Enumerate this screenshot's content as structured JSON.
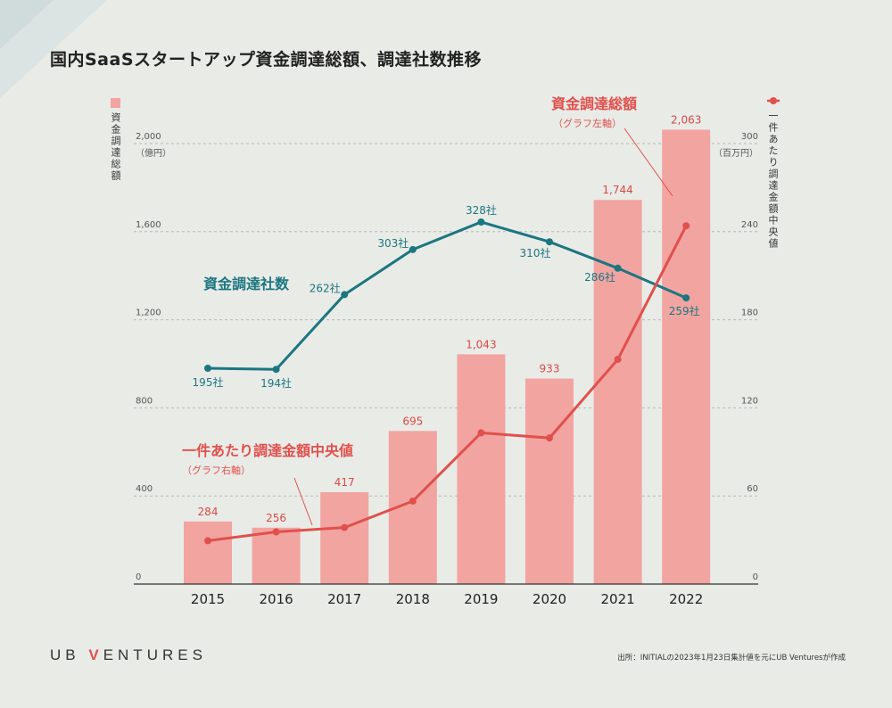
{
  "title": "国内SaaSスタートアップ資金調達総額、調達社数推移",
  "logo": {
    "prefix": "UB ",
    "accent": "V",
    "suffix": "ENTURES"
  },
  "source": "出所：INITIALの2023年1月23日集計値を元にUB Venturesが作成",
  "legend": {
    "left_label": "資金調達総額",
    "right_label": "一件あたり調達金額中央値"
  },
  "colors": {
    "bar": "#f2a4a1",
    "bar_label": "#d94a45",
    "red_line": "#e0504c",
    "teal_line": "#1b7680",
    "axis_text": "#555555",
    "grid": "#b9bab6",
    "corner": "#d6e1e0"
  },
  "chart_data": {
    "type": "bar+line",
    "categories": [
      "2015",
      "2016",
      "2017",
      "2018",
      "2019",
      "2020",
      "2021",
      "2022"
    ],
    "left_axis": {
      "ticks": [
        "0",
        "400",
        "800",
        "1,200",
        "1,600",
        "2,000"
      ],
      "tick_values": [
        0,
        400,
        800,
        1200,
        1600,
        2000
      ],
      "unit": "（億円）",
      "ylim": [
        0,
        2000
      ]
    },
    "right_axis": {
      "ticks": [
        "0",
        "60",
        "120",
        "180",
        "240",
        "300"
      ],
      "tick_values": [
        0,
        60,
        120,
        180,
        240,
        300
      ],
      "unit": "（百万円）",
      "ylim": [
        0,
        300
      ]
    },
    "bars": {
      "name": "資金調達総額",
      "sub": "（グラフ左軸）",
      "values": [
        284,
        256,
        417,
        695,
        1043,
        933,
        1744,
        2063
      ],
      "labels": [
        "284",
        "256",
        "417",
        "695",
        "1,043",
        "933",
        "1,744",
        "2,063"
      ]
    },
    "median_line": {
      "name": "一件あたり調達金額中央値",
      "sub": "（グラフ右軸）",
      "values": [
        29.5,
        35.5,
        38.5,
        56.5,
        103,
        99.5,
        153,
        244
      ]
    },
    "count_line": {
      "name": "資金調達社数",
      "values": [
        195,
        194,
        262,
        303,
        328,
        310,
        286,
        259
      ],
      "labels": [
        "195社",
        "194社",
        "262社",
        "303社",
        "328社",
        "310社",
        "286社",
        "259社"
      ]
    }
  }
}
